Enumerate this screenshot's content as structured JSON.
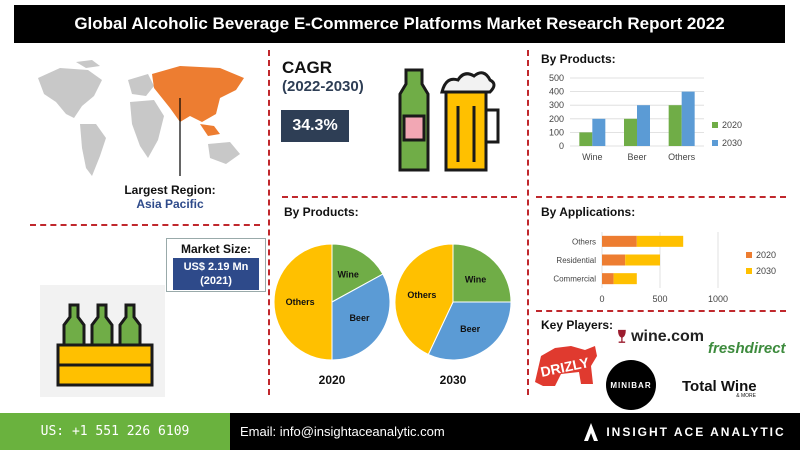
{
  "title": "Global  Alcoholic Beverage E-Commerce Platforms Market Research Report 2022",
  "region": {
    "label": "Largest Region:",
    "value": "Asia Pacific"
  },
  "market_size": {
    "label": "Market Size:",
    "value_line1": "US$ 2.19 Mn",
    "value_line2": "(2021)"
  },
  "cagr": {
    "label": "CAGR",
    "period": "(2022-2030)",
    "value": "34.3%"
  },
  "products_pie_heading": "By Products:",
  "products_bar_heading": "By Products:",
  "applications_heading": "By Applications:",
  "key_players_heading": "Key Players:",
  "key_players": [
    "DRIZLY",
    "wine.com",
    "freshdirect",
    "MINIBAR",
    "Total Wine",
    "& MORE"
  ],
  "footer": {
    "phone": "US: +1 551 226 6109",
    "email": "Email: info@insightaceanalytic.com",
    "brand": "INSIGHT ACE ANALYTIC"
  },
  "colors": {
    "c2020": "#70ad47",
    "c2030": "#5b9bd5",
    "orange": "#ed7d31",
    "yellow": "#ffc000",
    "dark": "#2e3e55"
  },
  "chart_data": [
    {
      "type": "pie",
      "title": "2020",
      "labels": [
        "Wine",
        "Beer",
        "Others"
      ],
      "values": [
        17,
        33,
        50
      ],
      "colors": [
        "#70ad47",
        "#5b9bd5",
        "#ffc000"
      ]
    },
    {
      "type": "pie",
      "title": "2030",
      "labels": [
        "Wine",
        "Beer",
        "Others"
      ],
      "values": [
        25,
        32,
        43
      ],
      "colors": [
        "#70ad47",
        "#5b9bd5",
        "#ffc000"
      ]
    },
    {
      "type": "bar",
      "categories": [
        "Wine",
        "Beer",
        "Others"
      ],
      "series": [
        {
          "name": "2020",
          "values": [
            100,
            200,
            300
          ]
        },
        {
          "name": "2030",
          "values": [
            200,
            300,
            400
          ]
        }
      ],
      "ylim": [
        0,
        500
      ],
      "yticks": [
        0,
        100,
        200,
        300,
        400,
        500
      ],
      "legend": "right"
    },
    {
      "type": "bar",
      "orientation": "horizontal",
      "stacked": true,
      "categories": [
        "Others",
        "Residential",
        "Commercial"
      ],
      "series": [
        {
          "name": "2020",
          "values": [
            300,
            200,
            100
          ]
        },
        {
          "name": "2030",
          "values": [
            400,
            300,
            200
          ]
        }
      ],
      "xlim": [
        0,
        1000
      ],
      "xticks": [
        0,
        500,
        1000
      ],
      "legend": "right"
    }
  ]
}
